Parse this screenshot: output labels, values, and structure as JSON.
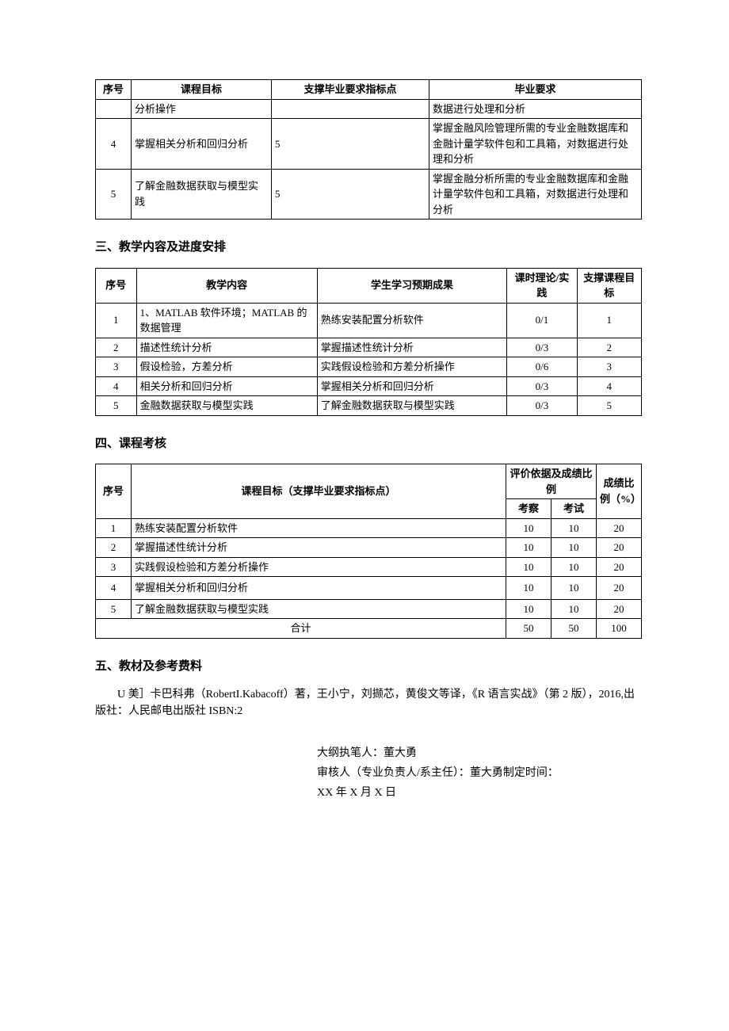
{
  "table1": {
    "headers": [
      "序号",
      "课程目标",
      "支撑毕业要求指标点",
      "毕业要求"
    ],
    "rows": [
      {
        "num": "",
        "goal": "分析操作",
        "idx": "",
        "req": "数据进行处理和分析"
      },
      {
        "num": "4",
        "goal": "掌握相关分析和回归分析",
        "idx": "5",
        "req": "掌握金融风险管理所需的专业金融数据库和金融计量学软件包和工具箱，对数据进行处理和分析"
      },
      {
        "num": "5",
        "goal": "了解金融数据获取与模型实践",
        "idx": "5",
        "req": "掌握金融分析所需的专业金融数据库和金融计量学软件包和工具箱，对数据进行处理和分析"
      }
    ]
  },
  "section3_title": "三、教学内容及进度安排",
  "table2": {
    "headers": [
      "序号",
      "教学内容",
      "学生学习预期成果",
      "课时理论/实践",
      "支撑课程目标"
    ],
    "rows": [
      {
        "num": "1",
        "content": "1、MATLAB 软件环境；MATLAB 的数据管理",
        "outcome": "熟练安装配置分析软件",
        "hours": "0/1",
        "goal": "1"
      },
      {
        "num": "2",
        "content": "描述性统计分析",
        "outcome": "掌握描述性统计分析",
        "hours": "0/3",
        "goal": "2"
      },
      {
        "num": "3",
        "content": "假设检验，方差分析",
        "outcome": "实践假设检验和方差分析操作",
        "hours": "0/6",
        "goal": "3"
      },
      {
        "num": "4",
        "content": "相关分析和回归分析",
        "outcome": "掌握相关分析和回归分析",
        "hours": "0/3",
        "goal": "4"
      },
      {
        "num": "5",
        "content": "金融数据获取与模型实践",
        "outcome": "了解金融数据获取与模型实践",
        "hours": "0/3",
        "goal": "5"
      }
    ]
  },
  "section4_title": "四、课程考核",
  "table3": {
    "h_num": "序号",
    "h_goal": "课程目标（支撑毕业要求指标点）",
    "h_eval": "评价依据及成绩比例",
    "h_score": "成绩比例（%）",
    "h_exam1": "考察",
    "h_exam2": "考试",
    "rows": [
      {
        "num": "1",
        "goal": "熟练安装配置分析软件",
        "a": "10",
        "b": "10",
        "c": "20"
      },
      {
        "num": "2",
        "goal": "掌握描述性统计分析",
        "a": "10",
        "b": "10",
        "c": "20"
      },
      {
        "num": "3",
        "goal": "实践假设检验和方差分析操作",
        "a": "10",
        "b": "10",
        "c": "20"
      },
      {
        "num": "4",
        "goal": "掌握相关分析和回归分析",
        "a": "10",
        "b": "10",
        "c": "20"
      },
      {
        "num": "5",
        "goal": "了解金融数据获取与模型实践",
        "a": "10",
        "b": "10",
        "c": "20"
      }
    ],
    "total_label": "合计",
    "total": {
      "a": "50",
      "b": "50",
      "c": "100"
    }
  },
  "section5_title": "五、教材及参考费料",
  "ref_text": "U 美］卡巴科弗（RobertI.Kabacoff）著，王小宁，刘撷芯，黄俊文等译，《R 语言实战》（第 2 版），2016,出版社：人民邮电出版社 ISBN:2",
  "sign": {
    "l1": "大纲执笔人：董大勇",
    "l2": "审核人（专业负责人/系主任）：董大勇制定时间：",
    "l3": "XX 年 X 月 X 日"
  }
}
